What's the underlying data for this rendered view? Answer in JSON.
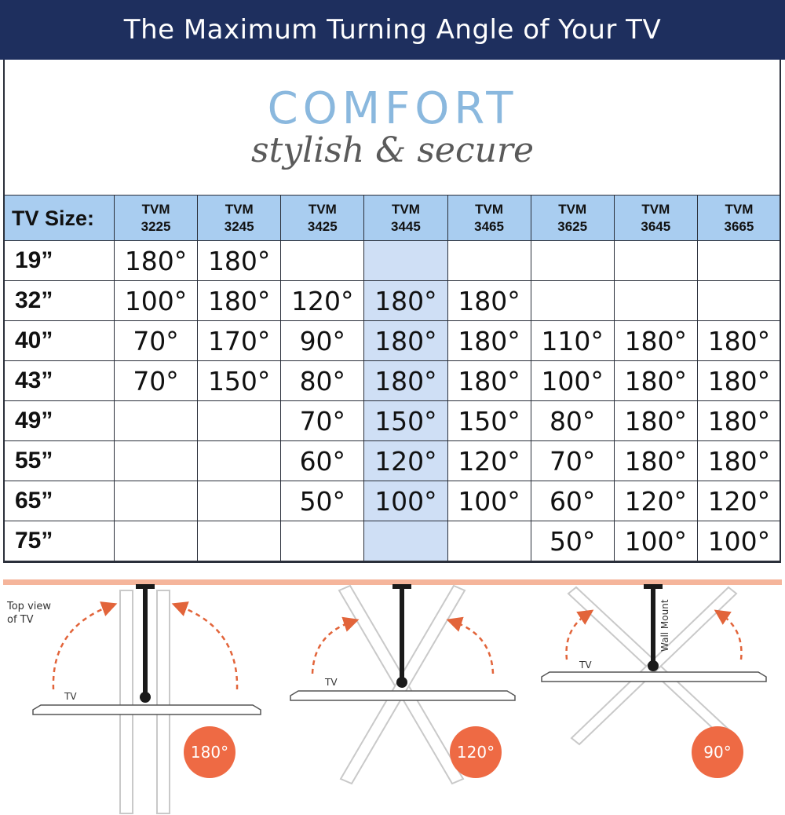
{
  "header": {
    "title": "The Maximum Turning Angle of Your TV"
  },
  "brand": {
    "name": "COMFORT",
    "tagline": "stylish & secure"
  },
  "table": {
    "label_header": "TV Size:",
    "models": [
      [
        "TVM",
        "3225"
      ],
      [
        "TVM",
        "3245"
      ],
      [
        "TVM",
        "3425"
      ],
      [
        "TVM",
        "3445"
      ],
      [
        "TVM",
        "3465"
      ],
      [
        "TVM",
        "3625"
      ],
      [
        "TVM",
        "3645"
      ],
      [
        "TVM",
        "3665"
      ]
    ],
    "highlight_column": 3,
    "rows": [
      {
        "size": "19”",
        "angles": [
          "180°",
          "180°",
          "",
          "",
          "",
          "",
          "",
          ""
        ]
      },
      {
        "size": "32”",
        "angles": [
          "100°",
          "180°",
          "120°",
          "180°",
          "180°",
          "",
          "",
          ""
        ]
      },
      {
        "size": "40”",
        "angles": [
          "70°",
          "170°",
          "90°",
          "180°",
          "180°",
          "110°",
          "180°",
          "180°"
        ]
      },
      {
        "size": "43”",
        "angles": [
          "70°",
          "150°",
          "80°",
          "180°",
          "180°",
          "100°",
          "180°",
          "180°"
        ]
      },
      {
        "size": "49”",
        "angles": [
          "",
          "",
          "70°",
          "150°",
          "150°",
          "80°",
          "180°",
          "180°"
        ]
      },
      {
        "size": "55”",
        "angles": [
          "",
          "",
          "60°",
          "120°",
          "120°",
          "70°",
          "180°",
          "180°"
        ]
      },
      {
        "size": "65”",
        "angles": [
          "",
          "",
          "50°",
          "100°",
          "100°",
          "60°",
          "120°",
          "120°"
        ]
      },
      {
        "size": "75”",
        "angles": [
          "",
          "",
          "",
          "",
          "",
          "50°",
          "100°",
          "100°"
        ]
      }
    ]
  },
  "diagram": {
    "top_view_label": [
      "Top view",
      "of TV"
    ],
    "tv_label": "TV",
    "wall_mount_label": "Wall Mount",
    "badges": [
      "180°",
      "120°",
      "90°"
    ],
    "colors": {
      "badge": "#ee6a44",
      "wall": "#f5b59b",
      "arrow": "#e2643a",
      "mount": "#1a1a1a"
    }
  }
}
